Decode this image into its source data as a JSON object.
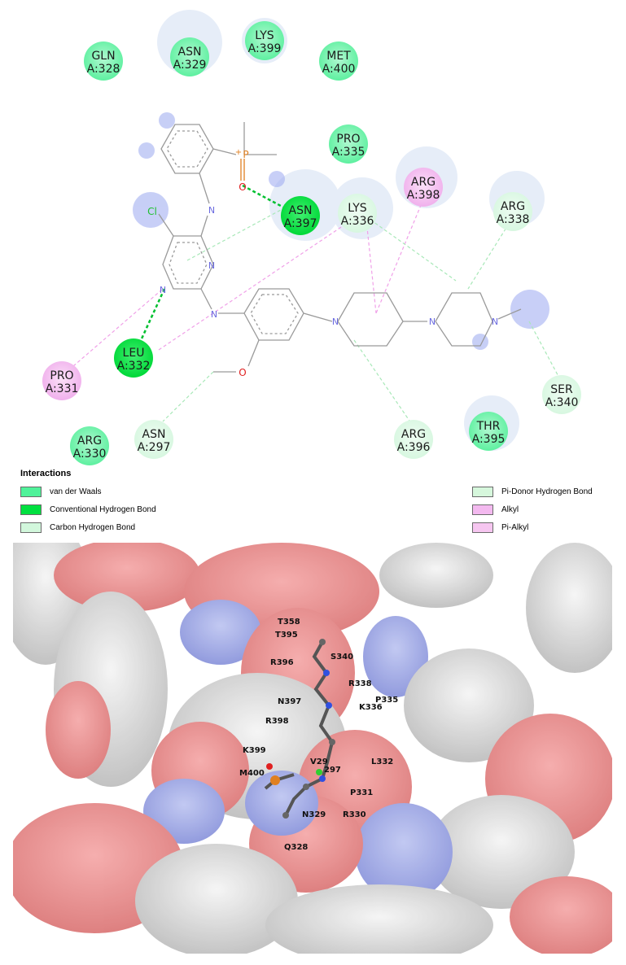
{
  "residues": [
    {
      "id": "gln328",
      "name": "GLN",
      "num": "A:328",
      "interaction": "van der Waals"
    },
    {
      "id": "asn329",
      "name": "ASN",
      "num": "A:329",
      "interaction": "van der Waals"
    },
    {
      "id": "lys399",
      "name": "LYS",
      "num": "A:399",
      "interaction": "van der Waals"
    },
    {
      "id": "met400",
      "name": "MET",
      "num": "A:400",
      "interaction": "van der Waals"
    },
    {
      "id": "pro335",
      "name": "PRO",
      "num": "A:335",
      "interaction": "van der Waals"
    },
    {
      "id": "asn397",
      "name": "ASN",
      "num": "A:397",
      "interaction": "Conventional Hydrogen Bond"
    },
    {
      "id": "lys336",
      "name": "LYS",
      "num": "A:336",
      "interaction": "Pi-Donor Hydrogen Bond"
    },
    {
      "id": "arg398",
      "name": "ARG",
      "num": "A:398",
      "interaction": "Alkyl"
    },
    {
      "id": "arg338",
      "name": "ARG",
      "num": "A:338",
      "interaction": "Carbon Hydrogen Bond"
    },
    {
      "id": "leu332",
      "name": "LEU",
      "num": "A:332",
      "interaction": "Conventional Hydrogen Bond"
    },
    {
      "id": "pro331",
      "name": "PRO",
      "num": "A:331",
      "interaction": "Alkyl"
    },
    {
      "id": "ser340",
      "name": "SER",
      "num": "A:340",
      "interaction": "Carbon Hydrogen Bond"
    },
    {
      "id": "arg330",
      "name": "ARG",
      "num": "A:330",
      "interaction": "van der Waals"
    },
    {
      "id": "asn297",
      "name": "ASN",
      "num": "A:297",
      "interaction": "Carbon Hydrogen Bond"
    },
    {
      "id": "arg396",
      "name": "ARG",
      "num": "A:396",
      "interaction": "Carbon Hydrogen Bond"
    },
    {
      "id": "thr395",
      "name": "THR",
      "num": "A:395",
      "interaction": "van der Waals"
    }
  ],
  "atoms": {
    "cl": "Cl",
    "o": "O",
    "p": "P",
    "plus": "+"
  },
  "legend": {
    "title": "Interactions",
    "items": [
      {
        "label": "van der Waals",
        "color": "#4ff29a"
      },
      {
        "label": "Conventional Hydrogen Bond",
        "color": "#00e040"
      },
      {
        "label": "Carbon Hydrogen Bond",
        "color": "#d2f7dc"
      },
      {
        "label": "Pi-Donor Hydrogen Bond",
        "color": "#d6f7dc"
      },
      {
        "label": "Alkyl",
        "color": "#f3b9ef"
      },
      {
        "label": "Pi-Alkyl",
        "color": "#f6c6f0"
      }
    ]
  },
  "labels3d": [
    "T358",
    "T395",
    "S340",
    "R396",
    "R338",
    "N397",
    "P335",
    "K336",
    "R398",
    "K399",
    "V29",
    "L332",
    "M400",
    "P331",
    "N329",
    "R330",
    "Q328",
    "297"
  ]
}
